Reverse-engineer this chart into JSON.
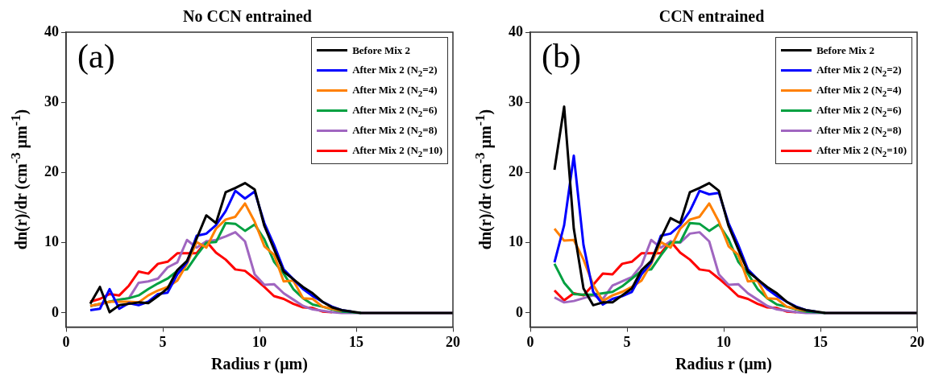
{
  "chart_data": [
    {
      "type": "line",
      "title": "No CCN entrained",
      "xlabel": "Radius r (μm)",
      "ylabel": "dn(r)/dr (cm$^{-3}$ μm$^{-1}$)",
      "annotations": [
        "(a)"
      ],
      "legend": "top right",
      "xlim": [
        0,
        20
      ],
      "ylim": [
        -2,
        40
      ],
      "xticks": [
        0,
        5,
        10,
        15,
        20
      ],
      "yticks": [
        0,
        10,
        20,
        30,
        40
      ],
      "x": [
        1.25,
        1.75,
        2.25,
        2.75,
        3.25,
        3.75,
        4.25,
        4.75,
        5.25,
        5.75,
        6.25,
        6.75,
        7.25,
        7.75,
        8.25,
        8.75,
        9.25,
        9.75,
        10.25,
        10.75,
        11.25,
        11.75,
        12.25,
        12.75,
        13.25,
        13.75,
        14.25,
        14.75,
        15.25,
        15.75,
        20
      ],
      "series": [
        {
          "name": "Before Mix 2",
          "color": "#000000",
          "values": [
            1.3,
            3.7,
            0.1,
            1.1,
            1.3,
            1.5,
            1.4,
            2.4,
            3.5,
            6.1,
            7.4,
            10.6,
            13.9,
            12.8,
            17.2,
            17.8,
            18.5,
            17.6,
            12.4,
            9.1,
            5.9,
            4.8,
            3.7,
            2.8,
            1.6,
            0.8,
            0.4,
            0.2,
            0,
            0,
            0
          ]
        },
        {
          "name": "After Mix 2 (N$_{2}$=2)",
          "color": "#0000ff",
          "values": [
            0.4,
            0.6,
            3.4,
            0.6,
            1.4,
            1.1,
            1.6,
            2.7,
            2.9,
            5.5,
            7.2,
            11.0,
            11.3,
            12.5,
            14.5,
            17.4,
            16.3,
            17.3,
            12.8,
            9.7,
            6.2,
            4.8,
            3.4,
            2.4,
            1.6,
            0.9,
            0.4,
            0.2,
            null,
            null,
            null
          ]
        },
        {
          "name": "After Mix 2 (N$_{2}$=4)",
          "color": "#ff8000",
          "values": [
            1.0,
            1.3,
            1.6,
            1.6,
            1.6,
            1.5,
            2.5,
            3.2,
            3.7,
            4.6,
            7.0,
            10.1,
            9.3,
            12.0,
            13.3,
            13.7,
            15.6,
            13.0,
            9.5,
            8.3,
            4.5,
            4.6,
            2.1,
            2.0,
            0.9,
            0.6,
            0.3,
            null,
            null,
            null,
            null
          ]
        },
        {
          "name": "After Mix 2 (N$_{2}$=6)",
          "color": "#00a040",
          "values": [
            1.0,
            1.3,
            1.6,
            1.9,
            2.1,
            2.5,
            3.4,
            4.2,
            4.9,
            6.0,
            6.2,
            8.2,
            10.0,
            10.1,
            12.8,
            12.7,
            11.7,
            12.6,
            10.5,
            7.3,
            5.6,
            3.4,
            2.1,
            1.2,
            0.9,
            0.5,
            0.2,
            0.1,
            0,
            null,
            null
          ]
        },
        {
          "name": "After Mix 2 (N$_{2}$=8)",
          "color": "#a066c0",
          "values": [
            1.0,
            1.2,
            1.6,
            1.9,
            2.1,
            4.3,
            4.5,
            4.9,
            6.5,
            7.2,
            10.4,
            9.3,
            10.2,
            10.4,
            10.9,
            11.5,
            10.2,
            5.5,
            4.0,
            4.1,
            2.8,
            1.9,
            1.0,
            0.5,
            0.3,
            0.1,
            0,
            0,
            0,
            0,
            0
          ]
        },
        {
          "name": "After Mix 2 (N$_{2}$=10)",
          "color": "#ff0000",
          "values": [
            1.6,
            2.0,
            2.7,
            2.5,
            3.9,
            5.9,
            5.6,
            7.0,
            7.3,
            8.5,
            8.5,
            8.5,
            10.2,
            8.6,
            7.6,
            6.2,
            6.0,
            4.9,
            3.7,
            2.4,
            2.0,
            1.3,
            0.8,
            0.7,
            0.2,
            0.1,
            null,
            null,
            null,
            null,
            null
          ]
        }
      ]
    },
    {
      "type": "line",
      "title": "CCN entrained",
      "xlabel": "Radius r (μm)",
      "ylabel": "dn(r)/dr (cm$^{-3}$ μm$^{-1}$)",
      "annotations": [
        "(b)"
      ],
      "legend": "top right",
      "xlim": [
        0,
        20
      ],
      "ylim": [
        -2,
        40
      ],
      "xticks": [
        0,
        5,
        10,
        15,
        20
      ],
      "yticks": [
        0,
        10,
        20,
        30,
        40
      ],
      "x": [
        1.25,
        1.75,
        2.25,
        2.75,
        3.25,
        3.75,
        4.25,
        4.75,
        5.25,
        5.75,
        6.25,
        6.75,
        7.25,
        7.75,
        8.25,
        8.75,
        9.25,
        9.75,
        10.25,
        10.75,
        11.25,
        11.75,
        12.25,
        12.75,
        13.25,
        13.75,
        14.25,
        14.75,
        15.25,
        15.75,
        20
      ],
      "series": [
        {
          "name": "Before Mix 2",
          "color": "#000000",
          "values": [
            20.4,
            29.4,
            12.0,
            3.5,
            1.1,
            1.5,
            1.5,
            2.5,
            3.5,
            6.1,
            7.4,
            10.6,
            13.5,
            12.8,
            17.2,
            17.8,
            18.5,
            17.4,
            12.4,
            9.1,
            5.9,
            4.8,
            3.7,
            2.8,
            1.6,
            0.8,
            0.4,
            0.2,
            0,
            0,
            0
          ]
        },
        {
          "name": "After Mix 2 (N$_{2}$=2)",
          "color": "#0000ff",
          "values": [
            7.2,
            12.5,
            22.4,
            9.7,
            3.0,
            1.2,
            2.0,
            2.4,
            3.0,
            5.5,
            7.2,
            11.0,
            11.3,
            12.5,
            14.5,
            17.4,
            16.9,
            17.1,
            12.8,
            9.7,
            6.2,
            4.8,
            3.4,
            2.4,
            1.6,
            0.9,
            0.4,
            0.2,
            null,
            null,
            null
          ]
        },
        {
          "name": "After Mix 2 (N$_{2}$=4)",
          "color": "#ff8000",
          "values": [
            12.0,
            10.3,
            10.4,
            7.6,
            4.0,
            1.7,
            2.5,
            3.0,
            3.7,
            4.6,
            7.0,
            10.1,
            9.3,
            12.0,
            13.3,
            13.7,
            15.6,
            13.0,
            9.5,
            8.3,
            4.5,
            4.6,
            2.1,
            2.0,
            0.9,
            0.6,
            0.3,
            null,
            null,
            null,
            null
          ]
        },
        {
          "name": "After Mix 2 (N$_{2}$=6)",
          "color": "#00a040",
          "values": [
            7.0,
            4.3,
            2.7,
            2.6,
            2.6,
            2.8,
            3.0,
            3.8,
            4.9,
            6.0,
            6.2,
            8.2,
            10.0,
            10.1,
            12.8,
            12.7,
            11.7,
            12.6,
            10.5,
            7.3,
            5.6,
            3.4,
            2.1,
            1.2,
            0.9,
            0.5,
            0.2,
            0.1,
            0,
            null,
            null
          ]
        },
        {
          "name": "After Mix 2 (N$_{2}$=8)",
          "color": "#a066c0",
          "values": [
            2.2,
            1.5,
            1.7,
            2.1,
            2.5,
            2.0,
            3.9,
            4.5,
            5.1,
            6.8,
            10.4,
            9.3,
            10.2,
            10.0,
            11.3,
            11.5,
            10.2,
            5.5,
            4.0,
            4.1,
            2.8,
            1.9,
            1.0,
            0.5,
            0.3,
            0.1,
            0,
            0,
            0,
            0,
            0
          ]
        },
        {
          "name": "After Mix 2 (N$_{2}$=10)",
          "color": "#ff0000",
          "values": [
            3.2,
            1.8,
            2.8,
            2.5,
            4.0,
            5.6,
            5.5,
            7.0,
            7.3,
            8.5,
            8.5,
            8.5,
            10.2,
            8.6,
            7.6,
            6.2,
            6.0,
            4.9,
            3.7,
            2.4,
            2.0,
            1.3,
            0.8,
            0.7,
            0.2,
            0.1,
            null,
            null,
            null,
            null,
            null
          ]
        }
      ]
    }
  ]
}
